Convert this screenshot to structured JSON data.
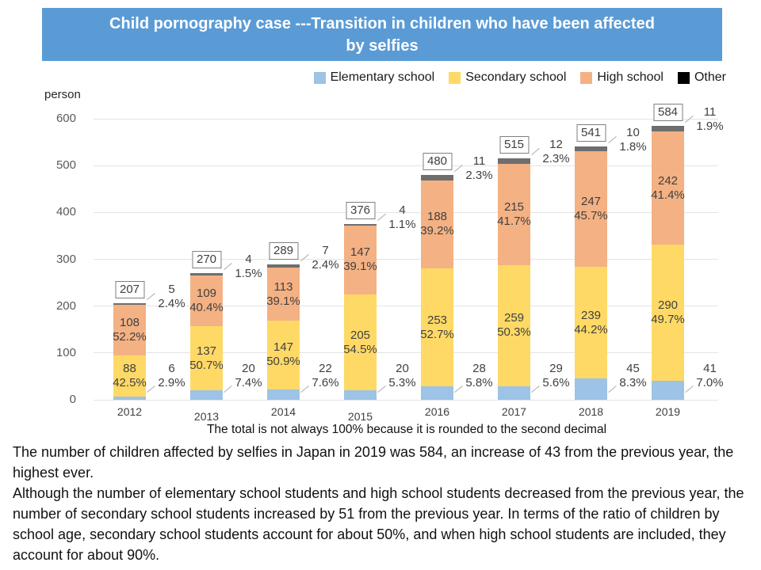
{
  "title": {
    "lines": [
      "Child pornography case ---Transition in children who have been affected",
      "by selfies"
    ]
  },
  "colors": {
    "banner": "#5B9BD5",
    "elementary": "#9DC3E6",
    "secondary": "#FFD966",
    "high_school": "#F4B183",
    "other_bar": "#6E6E6E",
    "other_legend": "#000000"
  },
  "chart_data": {
    "type": "bar",
    "stacked": true,
    "title": "Child pornography case ---Transition in children who have been affected by selfies",
    "ylabel": "person",
    "ylim": [
      0,
      600
    ],
    "yticks": [
      0,
      100,
      200,
      300,
      400,
      500,
      600
    ],
    "grid": true,
    "legend_position": "top-right",
    "categories": [
      "2012",
      "2013",
      "2014",
      "2015",
      "2016",
      "2017",
      "2018",
      "2019"
    ],
    "totals": [
      207,
      270,
      289,
      376,
      480,
      515,
      541,
      584
    ],
    "series": [
      {
        "name": "Elementary school",
        "color": "#9DC3E6",
        "values": [
          6,
          20,
          22,
          20,
          28,
          29,
          45,
          41
        ],
        "pcts": [
          "2.9%",
          "7.4%",
          "7.6%",
          "5.3%",
          "5.8%",
          "5.6%",
          "8.3%",
          "7.0%"
        ]
      },
      {
        "name": "Secondary school",
        "color": "#FFD966",
        "values": [
          88,
          137,
          147,
          205,
          253,
          259,
          239,
          290
        ],
        "pcts": [
          "42.5%",
          "50.7%",
          "50.9%",
          "54.5%",
          "52.7%",
          "50.3%",
          "44.2%",
          "49.7%"
        ]
      },
      {
        "name": "High school",
        "color": "#F4B183",
        "values": [
          108,
          109,
          113,
          147,
          188,
          215,
          247,
          242
        ],
        "pcts": [
          "52.2%",
          "40.4%",
          "39.1%",
          "39.1%",
          "39.2%",
          "41.7%",
          "45.7%",
          "41.4%"
        ]
      },
      {
        "name": "Other",
        "color": "#6E6E6E",
        "legend_color": "#000000",
        "values": [
          5,
          4,
          7,
          4,
          11,
          12,
          10,
          11
        ],
        "pcts": [
          "2.4%",
          "1.5%",
          "2.4%",
          "1.1%",
          "2.3%",
          "2.3%",
          "1.8%",
          "1.9%"
        ]
      }
    ]
  },
  "footnote": "The total is not always 100% because it is rounded to the second decimal",
  "paragraphs": [
    "The number of children affected by selfies in Japan in 2019 was 584, an increase of 43 from the previous year, the highest ever.",
    "Although the number of elementary school students and high school students decreased from the previous year, the number of secondary school students increased by 51 from the previous year. In terms of the ratio of children by school age, secondary school students account for about 50%, and when high school students are included, they account for about 90%."
  ]
}
